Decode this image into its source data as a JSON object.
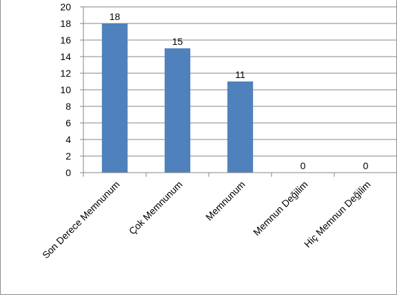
{
  "chart_data": {
    "type": "bar",
    "title": "",
    "xlabel": "",
    "ylabel": "",
    "categories": [
      "Son Derece Memnunum",
      "Çok Memnunum",
      "Memnunum",
      "Memnun Değilim",
      "Hiç Memnun Değilim"
    ],
    "values": [
      18,
      15,
      11,
      0,
      0
    ],
    "data_labels": [
      "18",
      "15",
      "11",
      "0",
      "0"
    ],
    "ylim": [
      0,
      20
    ],
    "yticks": [
      "0",
      "2",
      "4",
      "6",
      "8",
      "10",
      "12",
      "14",
      "16",
      "18",
      "20"
    ],
    "grid": true,
    "legend": "none",
    "bar_color": "#4f81bd"
  }
}
